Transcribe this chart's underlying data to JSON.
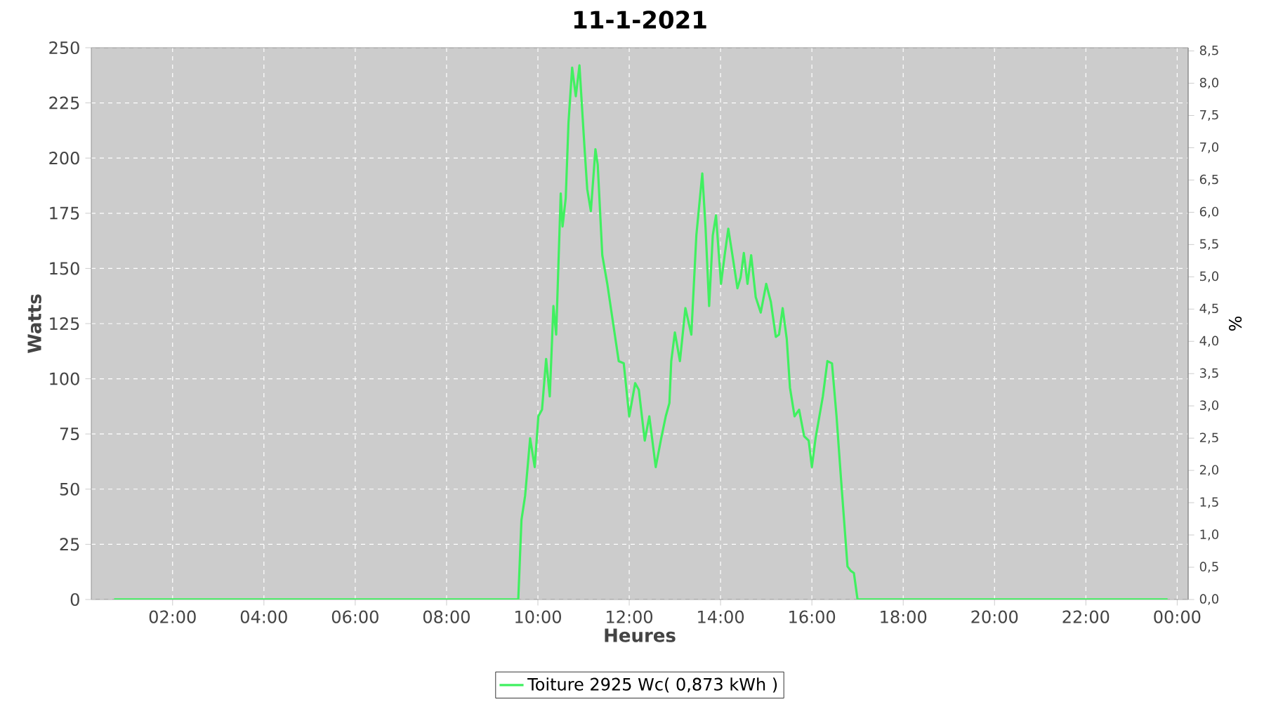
{
  "chart_data": {
    "type": "line",
    "title": "11-1-2021",
    "xlabel": "Heures",
    "ylabel": "Watts",
    "y2label": "%",
    "xlim": [
      0.22,
      24.24
    ],
    "xticks": [
      {
        "value": 2,
        "label": "02:00"
      },
      {
        "value": 4,
        "label": "04:00"
      },
      {
        "value": 6,
        "label": "06:00"
      },
      {
        "value": 8,
        "label": "08:00"
      },
      {
        "value": 10,
        "label": "10:00"
      },
      {
        "value": 12,
        "label": "12:00"
      },
      {
        "value": 14,
        "label": "14:00"
      },
      {
        "value": 16,
        "label": "16:00"
      },
      {
        "value": 18,
        "label": "18:00"
      },
      {
        "value": 20,
        "label": "20:00"
      },
      {
        "value": 22,
        "label": "22:00"
      },
      {
        "value": 24,
        "label": "00:00"
      }
    ],
    "ylim": [
      0,
      250
    ],
    "yticks": [
      0,
      25,
      50,
      75,
      100,
      125,
      150,
      175,
      200,
      225,
      250
    ],
    "y2lim": [
      0,
      8.55
    ],
    "y2ticks": [
      {
        "value": 0,
        "label": "0,0"
      },
      {
        "value": 0.5,
        "label": "0,5"
      },
      {
        "value": 1,
        "label": "1,0"
      },
      {
        "value": 1.5,
        "label": "1,5"
      },
      {
        "value": 2,
        "label": "2,0"
      },
      {
        "value": 2.5,
        "label": "2,5"
      },
      {
        "value": 3,
        "label": "3,0"
      },
      {
        "value": 3.5,
        "label": "3,5"
      },
      {
        "value": 4,
        "label": "4,0"
      },
      {
        "value": 4.5,
        "label": "4,5"
      },
      {
        "value": 5,
        "label": "5,0"
      },
      {
        "value": 5.5,
        "label": "5,5"
      },
      {
        "value": 6,
        "label": "6,0"
      },
      {
        "value": 6.5,
        "label": "6,5"
      },
      {
        "value": 7,
        "label": "7,0"
      },
      {
        "value": 7.5,
        "label": "7,5"
      },
      {
        "value": 8,
        "label": "8,0"
      },
      {
        "value": 8.5,
        "label": "8,5"
      }
    ],
    "grid": true,
    "legend": "bottom",
    "series": [
      {
        "name": "Toiture 2925 Wc( 0,873 kWh )",
        "color": "#40f060",
        "x": [
          0.72,
          3.0,
          6.0,
          9.0,
          9.57,
          9.64,
          9.72,
          9.83,
          9.93,
          10.01,
          10.09,
          10.18,
          10.26,
          10.34,
          10.4,
          10.5,
          10.54,
          10.61,
          10.67,
          10.75,
          10.83,
          10.91,
          11.02,
          11.08,
          11.16,
          11.26,
          11.31,
          11.41,
          11.52,
          11.67,
          11.77,
          11.88,
          12.0,
          12.13,
          12.21,
          12.34,
          12.44,
          12.58,
          12.7,
          12.8,
          12.88,
          12.92,
          13.0,
          13.11,
          13.23,
          13.36,
          13.47,
          13.6,
          13.67,
          13.75,
          13.83,
          13.9,
          14.01,
          14.09,
          14.17,
          14.26,
          14.37,
          14.44,
          14.51,
          14.59,
          14.67,
          14.77,
          14.88,
          15.0,
          15.1,
          15.21,
          15.28,
          15.36,
          15.45,
          15.52,
          15.62,
          15.72,
          15.83,
          15.93,
          16.0,
          16.08,
          16.24,
          16.34,
          16.44,
          16.54,
          16.64,
          16.78,
          16.85,
          16.92,
          17.0,
          18.0,
          20.0,
          22.0,
          23.79
        ],
        "values": [
          0,
          0,
          0,
          0,
          0,
          36,
          47,
          73,
          60,
          83,
          86,
          109,
          92,
          133,
          120,
          184,
          169,
          182,
          216,
          241,
          228,
          242,
          205,
          186,
          176,
          204,
          197,
          156,
          143,
          122,
          108,
          107,
          83,
          98,
          95,
          72,
          83,
          60,
          73,
          83,
          89,
          108,
          121,
          108,
          132,
          120,
          165,
          193,
          169,
          133,
          165,
          174,
          143,
          156,
          168,
          156,
          141,
          146,
          157,
          143,
          156,
          137,
          130,
          143,
          135,
          119,
          120,
          132,
          118,
          96,
          83,
          86,
          74,
          72,
          60,
          73,
          92,
          108,
          107,
          83,
          54,
          15,
          13,
          12,
          0,
          0,
          0,
          0,
          0
        ]
      }
    ]
  }
}
